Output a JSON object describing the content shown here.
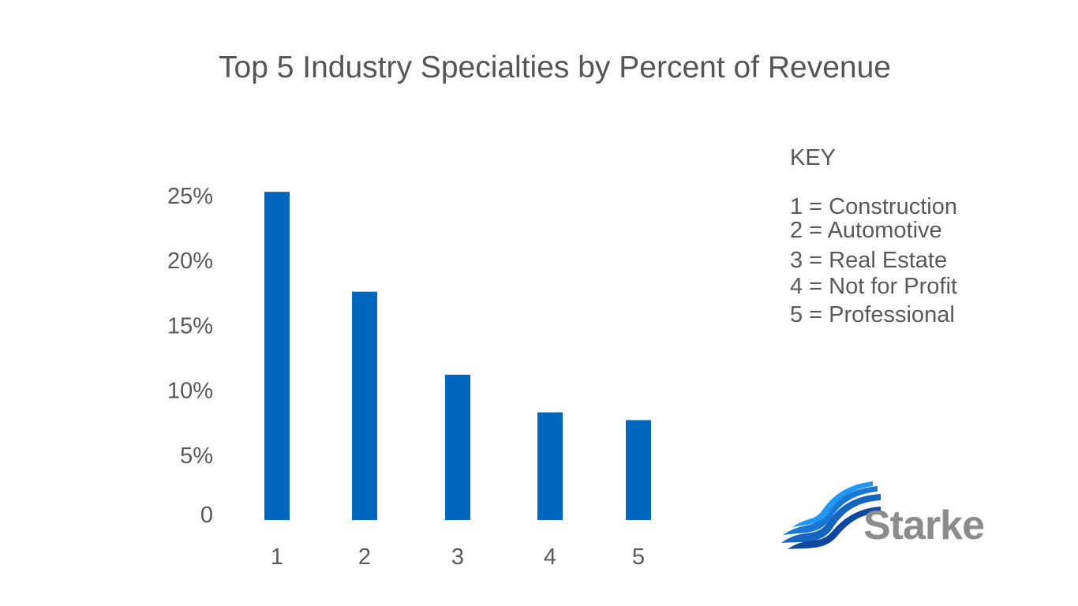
{
  "colors": {
    "bar": "#0067be",
    "text": "#595959",
    "logo_blue": "#1565c0",
    "logo_gray": "#8c8c8c"
  },
  "chart_data": {
    "type": "bar",
    "title": "Top 5 Industry Specialties by Percent of Revenue",
    "categories": [
      "1",
      "2",
      "3",
      "4",
      "5"
    ],
    "values": [
      25.3,
      17.6,
      11.2,
      8.3,
      7.7
    ],
    "ytick_labels": [
      "0",
      "5%",
      "10%",
      "15%",
      "20%",
      "25%"
    ],
    "ytick_values": [
      0,
      5,
      10,
      15,
      20,
      25
    ],
    "xlabel": "",
    "ylabel": "",
    "ylim": [
      0,
      25
    ],
    "grid": false,
    "legend": "right"
  },
  "key": {
    "title": "KEY",
    "items": [
      "1 = Construction",
      "2 = Automotive",
      "3 = Real Estate",
      "4 = Not for Profit",
      "5 = Professional"
    ]
  },
  "logo": {
    "text": "Starke"
  }
}
